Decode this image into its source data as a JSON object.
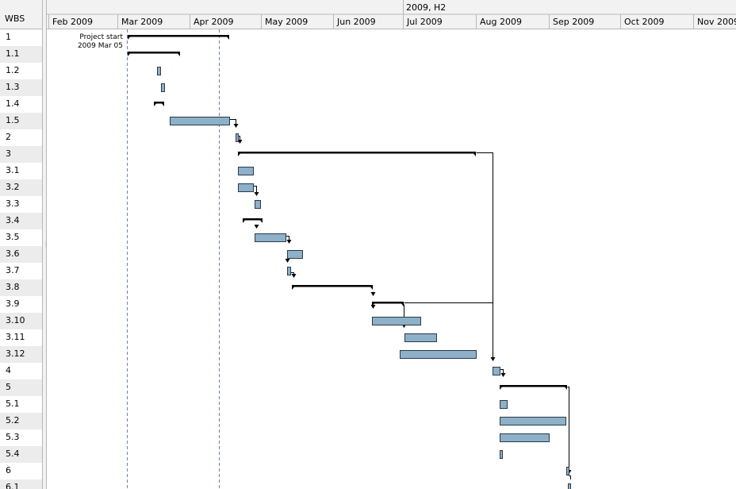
{
  "wbs_header": "WBS",
  "wbs_rows": [
    "1",
    "1.1",
    "1.2",
    "1.3",
    "1.4",
    "1.5",
    "2",
    "3",
    "3.1",
    "3.2",
    "3.3",
    "3.4",
    "3.5",
    "3.6",
    "3.7",
    "3.8",
    "3.9",
    "3.10",
    "3.11",
    "3.12",
    "4",
    "5",
    "5.1",
    "5.2",
    "5.3",
    "5.4",
    "6",
    "6.1"
  ],
  "timeline": {
    "upper": "2009, H2",
    "months": [
      "Feb 2009",
      "Mar 2009",
      "Apr 2009",
      "May 2009",
      "Jun 2009",
      "Jul 2009",
      "Aug 2009",
      "Sep 2009",
      "Oct 2009",
      "Nov 2009"
    ]
  },
  "milestone_label": {
    "line1": "Project start",
    "line2": "2009 Mar 05"
  },
  "colors": {
    "task_fill": "#8eb0c9",
    "task_border": "#2a3a4a",
    "header_bg": "#f2f2f2",
    "alt_row_bg": "#ececec",
    "grid_line": "#b8b8b8",
    "today_line": "#6b84a8"
  },
  "icons": {
    "splitter_grip": "grip-dots-icon",
    "dependency_arrow": "arrow-down-icon"
  }
}
